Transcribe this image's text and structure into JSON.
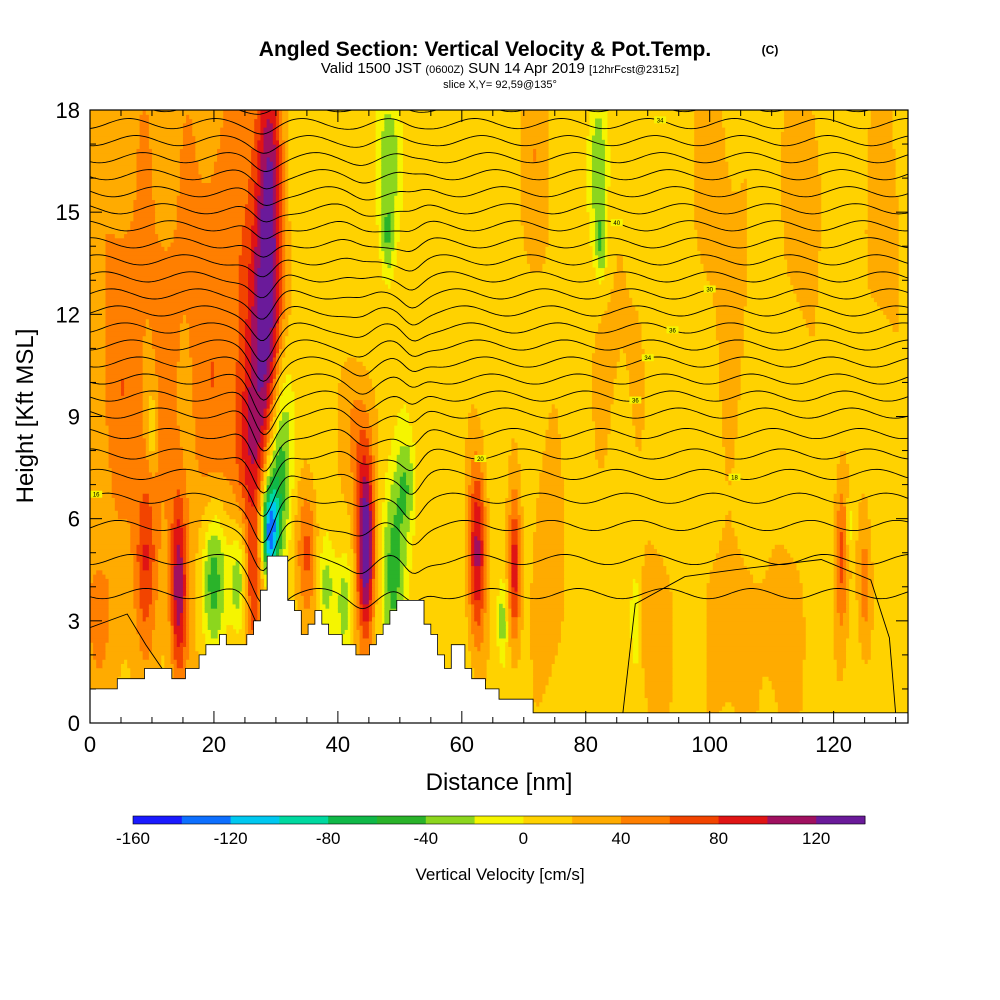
{
  "chart_data": {
    "type": "heatmap",
    "title": "Angled Section: Vertical Velocity & Pot.Temp.",
    "title_unit": "(C)",
    "subtitle_prefix": "Valid 1500 JST",
    "subtitle_z": "(0600Z)",
    "subtitle_date": "SUN 14 Apr 2019",
    "subtitle_fcst": "[12hrFcst@2315z]",
    "slice_label": "slice X,Y= 92,59@135°",
    "xlabel": "Distance [nm]",
    "ylabel": "Height [Kft MSL]",
    "xlim": [
      0,
      132
    ],
    "ylim": [
      0,
      18
    ],
    "x_ticks": [
      "0",
      "20",
      "40",
      "60",
      "80",
      "100",
      "120"
    ],
    "y_ticks": [
      "0",
      "3",
      "6",
      "9",
      "12",
      "15",
      "18"
    ],
    "colorbar": {
      "label": "Vertical Velocity [cm/s]",
      "ticks": [
        "-160",
        "-120",
        "-80",
        "-40",
        "0",
        "40",
        "80",
        "120"
      ],
      "min": -160,
      "max": 140,
      "step": 20,
      "colors": [
        "#1a1aff",
        "#0d6fff",
        "#00c8f0",
        "#00d9a0",
        "#10b848",
        "#2ab32a",
        "#8cd61e",
        "#f5f500",
        "#ffd200",
        "#ffab00",
        "#ff7f00",
        "#f24400",
        "#e01414",
        "#a01060",
        "#6a1a9a"
      ]
    },
    "background_level": 10,
    "velocity_features": [
      {
        "x": 3,
        "y": 14,
        "sx": 6,
        "sy": 7,
        "value": 25
      },
      {
        "x": 14,
        "y": 12,
        "sx": 5,
        "sy": 8,
        "value": 25
      },
      {
        "x": 21,
        "y": 11,
        "sx": 3,
        "sy": 6,
        "value": 35
      },
      {
        "x": 26,
        "y": 12,
        "sx": 2,
        "sy": 7,
        "value": 40
      },
      {
        "x": 29,
        "y": 15.5,
        "sx": 1.5,
        "sy": 3.2,
        "value": 95
      },
      {
        "x": 28.5,
        "y": 11,
        "sx": 1.8,
        "sy": 2.5,
        "value": 70
      },
      {
        "x": 27,
        "y": 8,
        "sx": 2.5,
        "sy": 1.5,
        "value": 35
      },
      {
        "x": 30,
        "y": 7,
        "sx": 1.6,
        "sy": 1.5,
        "value": -70
      },
      {
        "x": 29,
        "y": 5.6,
        "sx": 1.0,
        "sy": 1.0,
        "value": -130
      },
      {
        "x": 31,
        "y": 9.2,
        "sx": 1.5,
        "sy": 1.5,
        "value": -40
      },
      {
        "x": 20,
        "y": 4.3,
        "sx": 1.5,
        "sy": 1.6,
        "value": -85
      },
      {
        "x": 24,
        "y": 4.2,
        "sx": 1.2,
        "sy": 1.3,
        "value": -65
      },
      {
        "x": 14.3,
        "y": 4.0,
        "sx": 0.9,
        "sy": 1.8,
        "value": 90
      },
      {
        "x": 9,
        "y": 4.8,
        "sx": 1.2,
        "sy": 1.8,
        "value": 55
      },
      {
        "x": 10,
        "y": 8.7,
        "sx": 0.5,
        "sy": 0.8,
        "value": -40
      },
      {
        "x": 26.3,
        "y": 4.0,
        "sx": 1.0,
        "sy": 1.5,
        "value": 55
      },
      {
        "x": 35,
        "y": 5.0,
        "sx": 1.2,
        "sy": 1.5,
        "value": 55
      },
      {
        "x": 38,
        "y": 4.0,
        "sx": 1.0,
        "sy": 1.0,
        "value": -40
      },
      {
        "x": 44.5,
        "y": 5.2,
        "sx": 1.0,
        "sy": 1.9,
        "value": 135
      },
      {
        "x": 43,
        "y": 8.5,
        "sx": 1.5,
        "sy": 1.5,
        "value": 40
      },
      {
        "x": 49,
        "y": 4.5,
        "sx": 1.4,
        "sy": 2.0,
        "value": -60
      },
      {
        "x": 41,
        "y": 3.5,
        "sx": 0.8,
        "sy": 1.0,
        "value": -40
      },
      {
        "x": 51,
        "y": 7.0,
        "sx": 1.0,
        "sy": 1.0,
        "value": -40
      },
      {
        "x": 62.5,
        "y": 5.0,
        "sx": 1.0,
        "sy": 1.9,
        "value": 95
      },
      {
        "x": 68.5,
        "y": 4.5,
        "sx": 0.7,
        "sy": 1.6,
        "value": 80
      },
      {
        "x": 74,
        "y": 4.5,
        "sx": 1.8,
        "sy": 2.5,
        "value": 30
      },
      {
        "x": 66.5,
        "y": 3.0,
        "sx": 0.6,
        "sy": 0.8,
        "value": -40
      },
      {
        "x": 48.5,
        "y": 16.5,
        "sx": 1.5,
        "sy": 1.6,
        "value": -40
      },
      {
        "x": 48.0,
        "y": 14.2,
        "sx": 0.7,
        "sy": 0.8,
        "value": -40
      },
      {
        "x": 82,
        "y": 16.0,
        "sx": 1.2,
        "sy": 1.8,
        "value": -40
      },
      {
        "x": 82.5,
        "y": 14.0,
        "sx": 0.6,
        "sy": 0.7,
        "value": -40
      },
      {
        "x": 72,
        "y": 16.5,
        "sx": 2.0,
        "sy": 2.5,
        "value": 25
      },
      {
        "x": 100,
        "y": 16.5,
        "sx": 2.5,
        "sy": 2.5,
        "value": 20
      },
      {
        "x": 115,
        "y": 16,
        "sx": 2.5,
        "sy": 3,
        "value": 25
      },
      {
        "x": 128,
        "y": 15,
        "sx": 2.5,
        "sy": 3,
        "value": 20
      },
      {
        "x": 85,
        "y": 11,
        "sx": 3,
        "sy": 3,
        "value": 15
      },
      {
        "x": 104,
        "y": 12,
        "sx": 2.5,
        "sy": 3,
        "value": 15
      },
      {
        "x": 121.3,
        "y": 5.0,
        "sx": 0.8,
        "sy": 1.8,
        "value": 55
      },
      {
        "x": 125,
        "y": 4.0,
        "sx": 0.8,
        "sy": 1.5,
        "value": 40
      },
      {
        "x": 91,
        "y": 2.5,
        "sx": 2.2,
        "sy": 2.0,
        "value": 25
      },
      {
        "x": 103,
        "y": 2.5,
        "sx": 3,
        "sy": 2.0,
        "value": 25
      },
      {
        "x": 112,
        "y": 2.5,
        "sx": 2.5,
        "sy": 2.0,
        "value": 25
      },
      {
        "x": 99,
        "y": 2.0,
        "sx": 1,
        "sy": 1,
        "value": -10
      },
      {
        "x": 88,
        "y": 3.0,
        "sx": 0.6,
        "sy": 1.0,
        "value": -40
      },
      {
        "x": 122.5,
        "y": 5.8,
        "sx": 0.4,
        "sy": 0.5,
        "value": -40
      },
      {
        "x": 1,
        "y": 3.0,
        "sx": 3,
        "sy": 2,
        "value": 25
      },
      {
        "x": 5,
        "y": 9.5,
        "sx": 2.5,
        "sy": 2.5,
        "value": 20
      }
    ],
    "terrain_profile": [
      [
        0,
        1.0
      ],
      [
        4.4,
        1.0
      ],
      [
        4.4,
        1.3
      ],
      [
        8.8,
        1.3
      ],
      [
        8.8,
        1.6
      ],
      [
        13.2,
        1.6
      ],
      [
        13.2,
        1.3
      ],
      [
        15.4,
        1.3
      ],
      [
        15.4,
        1.6
      ],
      [
        17.6,
        1.6
      ],
      [
        17.6,
        2.0
      ],
      [
        18.7,
        2.0
      ],
      [
        18.7,
        2.3
      ],
      [
        20.9,
        2.3
      ],
      [
        20.9,
        2.6
      ],
      [
        22.0,
        2.6
      ],
      [
        22.0,
        2.3
      ],
      [
        25.3,
        2.3
      ],
      [
        25.3,
        2.6
      ],
      [
        26.4,
        2.6
      ],
      [
        26.4,
        3.0
      ],
      [
        27.5,
        3.0
      ],
      [
        27.5,
        3.9
      ],
      [
        28.6,
        3.9
      ],
      [
        28.6,
        4.9
      ],
      [
        31.9,
        4.9
      ],
      [
        31.9,
        3.6
      ],
      [
        33.0,
        3.6
      ],
      [
        33.0,
        3.3
      ],
      [
        34.1,
        3.3
      ],
      [
        34.1,
        2.6
      ],
      [
        35.2,
        2.6
      ],
      [
        35.2,
        2.9
      ],
      [
        36.3,
        2.9
      ],
      [
        36.3,
        3.3
      ],
      [
        37.4,
        3.3
      ],
      [
        37.4,
        2.9
      ],
      [
        38.5,
        2.9
      ],
      [
        38.5,
        2.6
      ],
      [
        40.7,
        2.6
      ],
      [
        40.7,
        2.3
      ],
      [
        42.9,
        2.3
      ],
      [
        42.9,
        2.0
      ],
      [
        45.1,
        2.0
      ],
      [
        45.1,
        2.3
      ],
      [
        46.2,
        2.3
      ],
      [
        46.2,
        2.6
      ],
      [
        47.3,
        2.6
      ],
      [
        47.3,
        2.9
      ],
      [
        48.4,
        2.9
      ],
      [
        48.4,
        3.3
      ],
      [
        49.5,
        3.3
      ],
      [
        49.5,
        3.6
      ],
      [
        53.9,
        3.6
      ],
      [
        53.9,
        2.9
      ],
      [
        55.0,
        2.9
      ],
      [
        55.0,
        2.6
      ],
      [
        56.1,
        2.6
      ],
      [
        56.1,
        2.0
      ],
      [
        57.2,
        2.0
      ],
      [
        57.2,
        1.6
      ],
      [
        58.3,
        1.6
      ],
      [
        58.3,
        2.3
      ],
      [
        60.5,
        2.3
      ],
      [
        60.5,
        1.6
      ],
      [
        61.6,
        1.6
      ],
      [
        61.6,
        1.3
      ],
      [
        63.8,
        1.3
      ],
      [
        63.8,
        1.0
      ],
      [
        66.0,
        1.0
      ],
      [
        66.0,
        0.7
      ],
      [
        71.5,
        0.7
      ],
      [
        71.5,
        0.3
      ],
      [
        132,
        0.3
      ]
    ],
    "theta_levels": [
      {
        "base": 3.8,
        "label": "",
        "lx": null
      },
      {
        "base": 4.8,
        "label": "",
        "lx": null
      },
      {
        "base": 5.8,
        "label": "",
        "lx": null
      },
      {
        "base": 6.6,
        "label": "16",
        "lx": 1
      },
      {
        "base": 7.3,
        "label": "18",
        "lx": 104
      },
      {
        "base": 7.9,
        "label": "20",
        "lx": 63
      },
      {
        "base": 8.5,
        "label": "",
        "lx": null
      },
      {
        "base": 9.1,
        "label": "",
        "lx": null
      },
      {
        "base": 9.6,
        "label": "36",
        "lx": 88
      },
      {
        "base": 10.1,
        "label": "",
        "lx": null
      },
      {
        "base": 10.6,
        "label": "34",
        "lx": 90
      },
      {
        "base": 11.1,
        "label": "",
        "lx": null
      },
      {
        "base": 11.6,
        "label": "36",
        "lx": 94
      },
      {
        "base": 12.1,
        "label": "",
        "lx": null
      },
      {
        "base": 12.6,
        "label": "30",
        "lx": 100
      },
      {
        "base": 13.1,
        "label": "",
        "lx": null
      },
      {
        "base": 13.6,
        "label": "",
        "lx": null
      },
      {
        "base": 14.1,
        "label": "",
        "lx": null
      },
      {
        "base": 14.6,
        "label": "40",
        "lx": 85
      },
      {
        "base": 15.1,
        "label": "",
        "lx": null
      },
      {
        "base": 15.6,
        "label": "",
        "lx": null
      },
      {
        "base": 16.1,
        "label": "",
        "lx": null
      },
      {
        "base": 16.6,
        "label": "",
        "lx": null
      },
      {
        "base": 17.1,
        "label": "",
        "lx": null
      },
      {
        "base": 17.6,
        "label": "34",
        "lx": 92
      },
      {
        "base": 18.1,
        "label": "",
        "lx": null
      }
    ]
  }
}
